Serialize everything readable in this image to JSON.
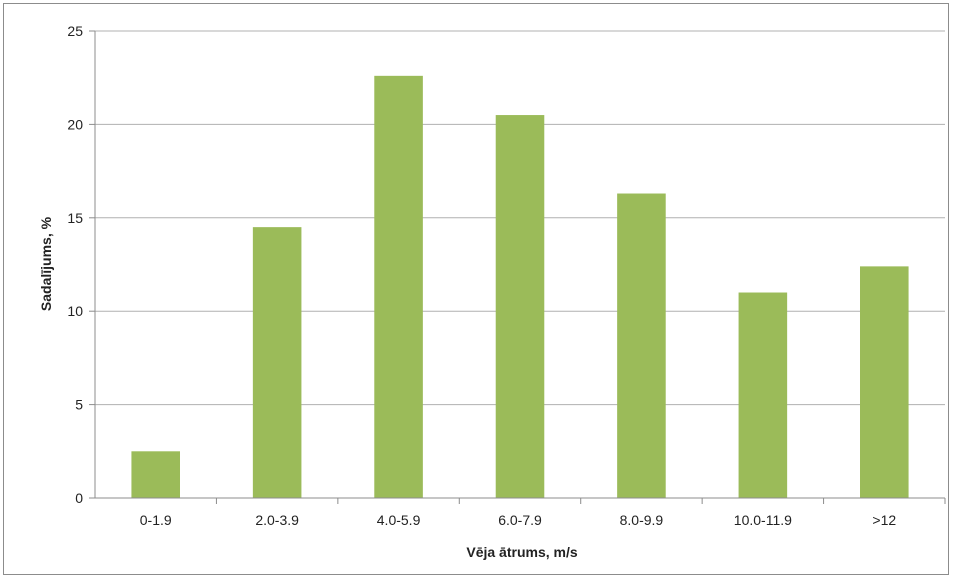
{
  "chart_data": {
    "type": "bar",
    "title": "",
    "xlabel": "Vēja ātrums, m/s",
    "ylabel": "Sadalījums,  %",
    "categories": [
      "0-1.9",
      "2.0-3.9",
      "4.0-5.9",
      "6.0-7.9",
      "8.0-9.9",
      "10.0-11.9",
      ">12"
    ],
    "values": [
      2.5,
      14.5,
      22.6,
      20.5,
      16.3,
      11.0,
      12.4
    ],
    "ylim": [
      0,
      25
    ],
    "yticks": [
      0,
      5,
      10,
      15,
      20,
      25
    ],
    "grid": true,
    "legend": "none",
    "colors": {
      "bar": "#9BBB59",
      "grid": "#B0B0B0",
      "axis": "#8C8C8C"
    }
  }
}
